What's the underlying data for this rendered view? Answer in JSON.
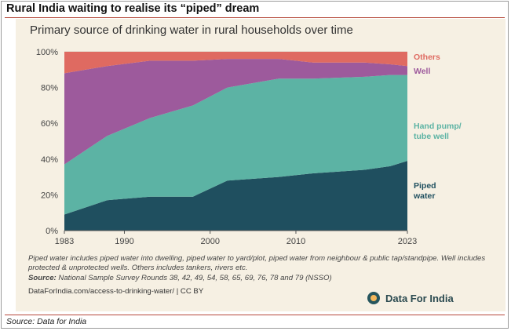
{
  "header": {
    "title": "Rural India waiting to realise its “piped” dream"
  },
  "footer": {
    "source": "Source: Data for India"
  },
  "card": {
    "note": "Piped water includes piped water into dwelling, piped water to yard/plot, piped water from neighbour & public tap/standpipe. Well includes protected & unprotected wells. Others includes tankers, rivers etc.",
    "source_label": "Source:",
    "source_text": "National Sample Survey Rounds 38, 42, 49, 54, 58, 65, 69, 76, 78 and 79 (NSSO)",
    "url": "DataForIndia.com/access-to-drinking-water/  |  CC BY",
    "brand": "Data For India"
  },
  "colors": {
    "piped": "#1f4f5f",
    "handpump": "#5cb3a4",
    "well": "#9d5a9c",
    "others": "#df6a61",
    "background": "#f6f0e3",
    "accent": "#b5483a"
  },
  "chart_data": {
    "type": "area",
    "stacked": true,
    "title": "Primary source of drinking water in rural households over time",
    "x": [
      1983,
      1988,
      1993,
      1998,
      2002,
      2008,
      2012,
      2018,
      2021,
      2023
    ],
    "xticks": [
      1983,
      1990,
      2000,
      2010,
      2023
    ],
    "yticks": [
      "0%",
      "20%",
      "40%",
      "60%",
      "80%",
      "100%"
    ],
    "ylim": [
      0,
      100
    ],
    "series": [
      {
        "name": "Piped water",
        "label_lines": [
          "Piped",
          "water"
        ],
        "color": "#1f4f5f",
        "values": [
          9,
          17,
          19,
          19,
          28,
          30,
          32,
          34,
          36,
          39
        ]
      },
      {
        "name": "Hand pump/ tube well",
        "label_lines": [
          "Hand pump/",
          "tube well"
        ],
        "color": "#5cb3a4",
        "values": [
          28,
          36,
          44,
          51,
          52,
          55,
          53,
          52,
          51,
          48
        ]
      },
      {
        "name": "Well",
        "label_lines": [
          "Well"
        ],
        "color": "#9d5a9c",
        "values": [
          51,
          39,
          32,
          25,
          16,
          11,
          9,
          8,
          6,
          5
        ]
      },
      {
        "name": "Others",
        "label_lines": [
          "Others"
        ],
        "color": "#df6a61",
        "values": [
          12,
          8,
          5,
          5,
          4,
          4,
          6,
          6,
          7,
          8
        ]
      }
    ]
  }
}
